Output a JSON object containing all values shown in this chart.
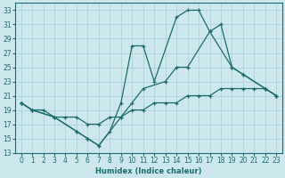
{
  "xlabel": "Humidex (Indice chaleur)",
  "bg_color": "#cce8ec",
  "grid_color": "#aacdd4",
  "line_color": "#1e6b6b",
  "xlim": [
    -0.5,
    23.5
  ],
  "ylim": [
    13,
    34
  ],
  "yticks": [
    13,
    15,
    17,
    19,
    21,
    23,
    25,
    27,
    29,
    31,
    33
  ],
  "xticks": [
    0,
    1,
    2,
    3,
    4,
    5,
    6,
    7,
    8,
    9,
    10,
    11,
    12,
    13,
    14,
    15,
    16,
    17,
    18,
    19,
    20,
    21,
    22,
    23
  ],
  "line1_x": [
    0,
    1,
    3,
    5,
    6,
    7,
    8,
    9,
    10,
    11,
    12,
    14,
    15,
    16,
    17,
    19,
    20,
    22,
    23
  ],
  "line1_y": [
    20,
    19,
    18,
    16,
    15,
    14,
    16,
    20,
    28,
    28,
    23,
    32,
    33,
    33,
    30,
    25,
    24,
    22,
    21
  ],
  "line2_x": [
    0,
    1,
    2,
    3,
    4,
    5,
    6,
    7,
    8,
    9,
    10,
    11,
    12,
    13,
    14,
    15,
    16,
    17,
    18,
    19,
    20,
    21,
    22,
    23
  ],
  "line2_y": [
    20,
    19,
    19,
    18,
    18,
    18,
    17,
    17,
    18,
    18,
    19,
    19,
    20,
    20,
    20,
    21,
    21,
    21,
    22,
    22,
    22,
    22,
    22,
    21
  ],
  "line3_x": [
    0,
    1,
    3,
    5,
    6,
    7,
    9,
    10,
    11,
    13,
    14,
    15,
    17,
    18,
    19,
    20,
    22,
    23
  ],
  "line3_y": [
    20,
    19,
    18,
    16,
    15,
    14,
    18,
    20,
    22,
    23,
    25,
    25,
    30,
    31,
    25,
    24,
    22,
    21
  ]
}
